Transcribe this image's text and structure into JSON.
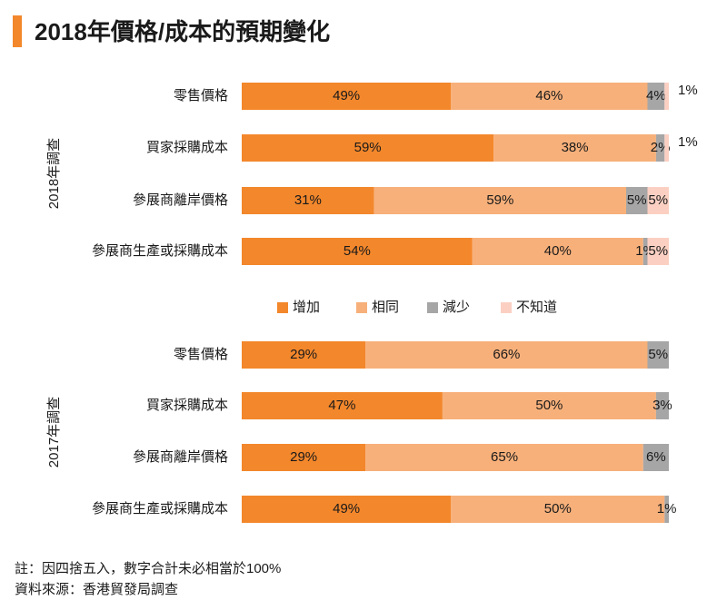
{
  "title": "2018年價格/成本的預期變化",
  "colors": {
    "accent": "#f3872b",
    "increase": "#f3872b",
    "same": "#f7b07a",
    "decrease": "#a6a6a6",
    "unknown": "#fbd0c3"
  },
  "chart_data": {
    "type": "bar",
    "orientation": "horizontal",
    "stacked": true,
    "title": "2018年價格/成本的預期變化",
    "xlim": [
      0,
      100
    ],
    "legend": {
      "position": "center",
      "entries": [
        "增加",
        "相同",
        "減少",
        "不知道"
      ]
    },
    "groups": [
      {
        "label": "2018年調查",
        "categories": [
          "零售價格",
          "買家採購成本",
          "參展商離岸價格",
          "參展商生產或採購成本"
        ],
        "series": [
          {
            "name": "增加",
            "values": [
              49,
              59,
              31,
              54
            ]
          },
          {
            "name": "相同",
            "values": [
              46,
              38,
              59,
              40
            ]
          },
          {
            "name": "減少",
            "values": [
              4,
              2,
              5,
              1
            ]
          },
          {
            "name": "不知道",
            "values": [
              1,
              1,
              5,
              5
            ]
          }
        ]
      },
      {
        "label": "2017年調查",
        "categories": [
          "零售價格",
          "買家採購成本",
          "參展商離岸價格",
          "參展商生產或採購成本"
        ],
        "series": [
          {
            "name": "增加",
            "values": [
              29,
              47,
              29,
              49
            ]
          },
          {
            "name": "相同",
            "values": [
              66,
              50,
              65,
              50
            ]
          },
          {
            "name": "減少",
            "values": [
              5,
              3,
              6,
              1
            ]
          },
          {
            "name": "不知道",
            "values": [
              0,
              0,
              0,
              0
            ]
          }
        ]
      }
    ]
  },
  "notes": {
    "footnote": "註：因四捨五入，數字合計未必相當於100%",
    "source": "資料來源：香港貿發局調查"
  }
}
